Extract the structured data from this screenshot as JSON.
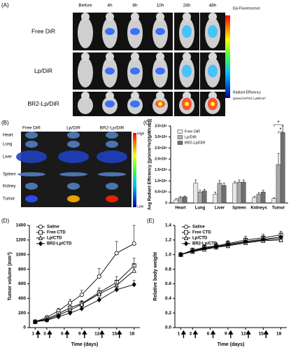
{
  "panel_a": {
    "label": "(A)",
    "columns": [
      "Before",
      "4h",
      "8h",
      "10h",
      "24h",
      "48h"
    ],
    "rows": [
      "Free DiR",
      "Lp/DiR",
      "BR2-Lp/DiR"
    ],
    "colorbar_title": "Epi-Fluorescence",
    "colorbar_label": "Radiant Efficiency",
    "colorbar_units": "(p/sec/cm²/sr) / µW/cm²"
  },
  "panel_b": {
    "label": "(B)",
    "columns": [
      "Free DiR",
      "Lp/DiR",
      "BR2-Lp/DiR"
    ],
    "organs": [
      "Heart",
      "Lung",
      "Liver",
      "Spleen",
      "Kidney",
      "Tumor"
    ],
    "scale_high": "High",
    "scale_low": "Low"
  },
  "chart_data": [
    {
      "type": "bar",
      "panel_label": "(C)",
      "ylabel": "Avg Radiant Efficiency [(p/s/cm²/sr)/(µW/cm²)]",
      "categories": [
        "Heart",
        "Lung",
        "Liver",
        "Spleen",
        "Kidneys",
        "Tumor"
      ],
      "series": [
        {
          "name": "Free DiR",
          "color": "#e6e6e6",
          "values": [
            150000000,
            900000000,
            400000000,
            900000000,
            250000000,
            200000000
          ],
          "errors": [
            50000000,
            150000000,
            100000000,
            80000000,
            60000000,
            40000000
          ]
        },
        {
          "name": "Lp/DiR",
          "color": "#b0b0b0",
          "values": [
            250000000,
            500000000,
            900000000,
            950000000,
            400000000,
            1750000000
          ],
          "errors": [
            50000000,
            80000000,
            120000000,
            100000000,
            70000000,
            500000000
          ]
        },
        {
          "name": "BR2-Lp/DiR",
          "color": "#707070",
          "values": [
            280000000,
            550000000,
            800000000,
            950000000,
            500000000,
            3200000000
          ],
          "errors": [
            40000000,
            70000000,
            100000000,
            100000000,
            80000000,
            300000000
          ]
        }
      ],
      "ylim": [
        0,
        3500000000
      ],
      "yticks": [
        0,
        {
          "value": 500000000,
          "label": "5.0×10⁸"
        },
        {
          "value": 1000000000,
          "label": "1.0×10⁹"
        },
        {
          "value": 1500000000,
          "label": "1.5×10⁹"
        },
        {
          "value": 2000000000,
          "label": "2.0×10⁹"
        },
        {
          "value": 2500000000,
          "label": "2.5×10⁹"
        },
        {
          "value": 3000000000,
          "label": "3.0×10⁹"
        },
        {
          "value": 3500000000,
          "label": "3.5×10⁹"
        }
      ],
      "annotations": [
        "*",
        "*"
      ],
      "legend": "upper left"
    },
    {
      "type": "line",
      "panel_label": "(D)",
      "ylabel": "Tumor volume (mm³)",
      "xlabel": "Time (days)",
      "x": [
        1,
        3,
        5,
        7,
        9,
        12,
        15,
        18
      ],
      "series": [
        {
          "name": "Saline",
          "color": "#000000",
          "marker": "circle",
          "values": [
            80,
            140,
            230,
            340,
            450,
            700,
            1020,
            1150
          ],
          "errors": [
            10,
            25,
            35,
            45,
            60,
            110,
            160,
            250
          ]
        },
        {
          "name": "Free CTD",
          "color": "#000000",
          "marker": "square",
          "values": [
            80,
            120,
            190,
            270,
            330,
            480,
            620,
            850
          ],
          "errors": [
            10,
            20,
            25,
            35,
            40,
            60,
            80,
            100
          ]
        },
        {
          "name": "Lp/CTD",
          "color": "#000000",
          "marker": "triangle",
          "values": [
            80,
            110,
            170,
            240,
            320,
            460,
            580,
            780
          ],
          "errors": [
            10,
            15,
            20,
            30,
            40,
            50,
            70,
            90
          ]
        },
        {
          "name": "BR2-Lp/CTD",
          "color": "#000000",
          "marker": "diamond",
          "values": [
            80,
            100,
            150,
            200,
            260,
            380,
            520,
            590
          ],
          "errors": [
            10,
            15,
            20,
            25,
            30,
            40,
            50,
            60
          ]
        }
      ],
      "xlim": [
        0,
        19
      ],
      "xticks": [
        1,
        3,
        6,
        9,
        12,
        15,
        18
      ],
      "ylim": [
        0,
        1400
      ],
      "yticks": [
        0,
        200,
        400,
        600,
        800,
        1000,
        1200,
        1400
      ],
      "legend": "upper left"
    },
    {
      "type": "line",
      "panel_label": "(E)",
      "ylabel": "Relative body weight",
      "xlabel": "Time (days)",
      "x": [
        1,
        3,
        5,
        7,
        9,
        12,
        15,
        18
      ],
      "series": [
        {
          "name": "Saline",
          "color": "#000000",
          "marker": "circle",
          "values": [
            1.0,
            1.05,
            1.08,
            1.1,
            1.13,
            1.17,
            1.2,
            1.22
          ],
          "errors": [
            0.01,
            0.03,
            0.04,
            0.04,
            0.05,
            0.05,
            0.05,
            0.06
          ]
        },
        {
          "name": "Free CTD",
          "color": "#000000",
          "marker": "square",
          "values": [
            1.0,
            1.06,
            1.1,
            1.12,
            1.15,
            1.2,
            1.23,
            1.27
          ],
          "errors": [
            0.01,
            0.03,
            0.03,
            0.04,
            0.04,
            0.05,
            0.05,
            0.05
          ]
        },
        {
          "name": "Lp/CTD",
          "color": "#000000",
          "marker": "triangle",
          "values": [
            1.0,
            1.04,
            1.07,
            1.1,
            1.12,
            1.16,
            1.19,
            1.2
          ],
          "errors": [
            0.01,
            0.02,
            0.03,
            0.03,
            0.04,
            0.04,
            0.05,
            0.05
          ]
        },
        {
          "name": "BR2-Lp/CTD",
          "color": "#000000",
          "marker": "diamond",
          "values": [
            1.0,
            1.05,
            1.09,
            1.11,
            1.14,
            1.18,
            1.21,
            1.24
          ],
          "errors": [
            0.01,
            0.02,
            0.03,
            0.03,
            0.04,
            0.04,
            0.04,
            0.05
          ]
        }
      ],
      "xlim": [
        0,
        19
      ],
      "xticks": [
        1,
        3,
        6,
        9,
        12,
        15,
        18
      ],
      "ylim": [
        0,
        1.4
      ],
      "yticks": [
        {
          "value": 0,
          "label": "0.0"
        },
        0.2,
        0.4,
        0.6,
        0.8,
        {
          "value": 1,
          "label": "1.0"
        },
        1.2,
        1.4
      ],
      "legend": "upper left"
    }
  ]
}
